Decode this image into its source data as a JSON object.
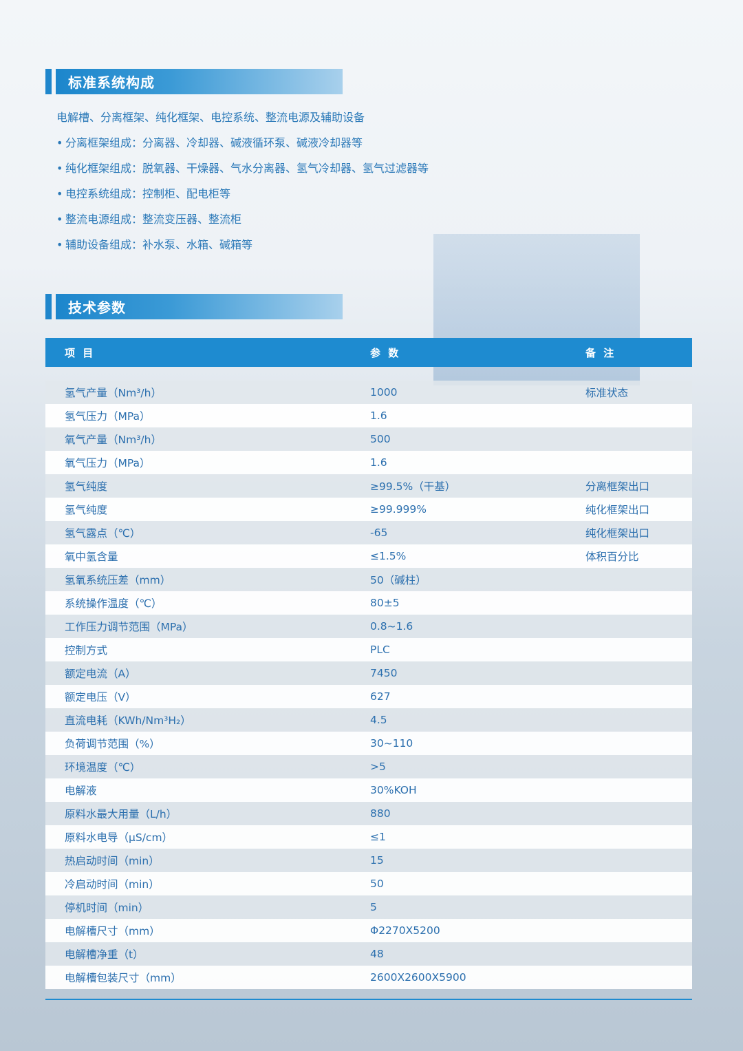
{
  "section1": {
    "title": "标准系统构成",
    "intro": "电解槽、分离框架、纯化框架、电控系统、整流电源及辅助设备",
    "items": [
      "分离框架组成：分离器、冷却器、碱液循环泵、碱液冷却器等",
      "纯化框架组成：脱氧器、干燥器、气水分离器、氢气冷却器、氢气过滤器等",
      "电控系统组成：控制柜、配电柜等",
      "整流电源组成：整流变压器、整流柜",
      "辅助设备组成：补水泵、水箱、碱箱等"
    ],
    "bullet": "•"
  },
  "section2": {
    "title": "技术参数"
  },
  "table": {
    "headers": [
      "项 目",
      "参 数",
      "备 注"
    ],
    "rows": [
      [
        "氢气产量（Nm³/h）",
        "1000",
        "标准状态"
      ],
      [
        "氢气压力（MPa）",
        "1.6",
        ""
      ],
      [
        "氧气产量（Nm³/h）",
        "500",
        ""
      ],
      [
        "氧气压力（MPa）",
        "1.6",
        ""
      ],
      [
        "氢气纯度",
        "≥99.5%（干基）",
        "分离框架出口"
      ],
      [
        "氢气纯度",
        "≥99.999%",
        "纯化框架出口"
      ],
      [
        "氢气露点（℃）",
        "-65",
        "纯化框架出口"
      ],
      [
        "氧中氢含量",
        "≤1.5%",
        "体积百分比"
      ],
      [
        "氢氧系统压差（mm）",
        "50（碱柱）",
        ""
      ],
      [
        "系统操作温度（℃）",
        "80±5",
        ""
      ],
      [
        "工作压力调节范围（MPa）",
        "0.8~1.6",
        ""
      ],
      [
        "控制方式",
        "PLC",
        ""
      ],
      [
        "额定电流（A）",
        "7450",
        ""
      ],
      [
        "额定电压（V）",
        "627",
        ""
      ],
      [
        "直流电耗（KWh/Nm³H₂）",
        "4.5",
        ""
      ],
      [
        "负荷调节范围（%）",
        "30~110",
        ""
      ],
      [
        "环境温度（℃）",
        ">5",
        ""
      ],
      [
        "电解液",
        "30%KOH",
        ""
      ],
      [
        "原料水最大用量（L/h）",
        "880",
        ""
      ],
      [
        "原料水电导（μS/cm）",
        "≤1",
        ""
      ],
      [
        "热启动时间（min）",
        "15",
        ""
      ],
      [
        "冷启动时间（min）",
        "50",
        ""
      ],
      [
        "停机时间（min）",
        "5",
        ""
      ],
      [
        "电解槽尺寸（mm）",
        "Φ2270X5200",
        ""
      ],
      [
        "电解槽净重（t）",
        "48",
        ""
      ],
      [
        "电解槽包装尺寸（mm）",
        "2600X2600X5900",
        ""
      ]
    ]
  },
  "colors": {
    "accent": "#1e8bd0",
    "text": "#2b6fae"
  }
}
